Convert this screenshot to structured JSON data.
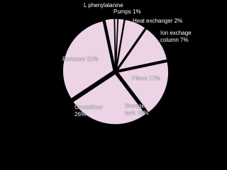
{
  "chart_data": {
    "type": "pie",
    "categories": [
      "L phenylalanine",
      "Pumps",
      "Heat exchanger",
      "Ion exchage column",
      "Filters",
      "Storage tank",
      "Crystallizer",
      "Reactors"
    ],
    "values": [
      3,
      1,
      2,
      7,
      12,
      18,
      26,
      31
    ],
    "value_labels": [
      null,
      "1%",
      "2%",
      "7%",
      "12%",
      "18%",
      "26%",
      "31%"
    ],
    "color": "#ecd3e6"
  }
}
